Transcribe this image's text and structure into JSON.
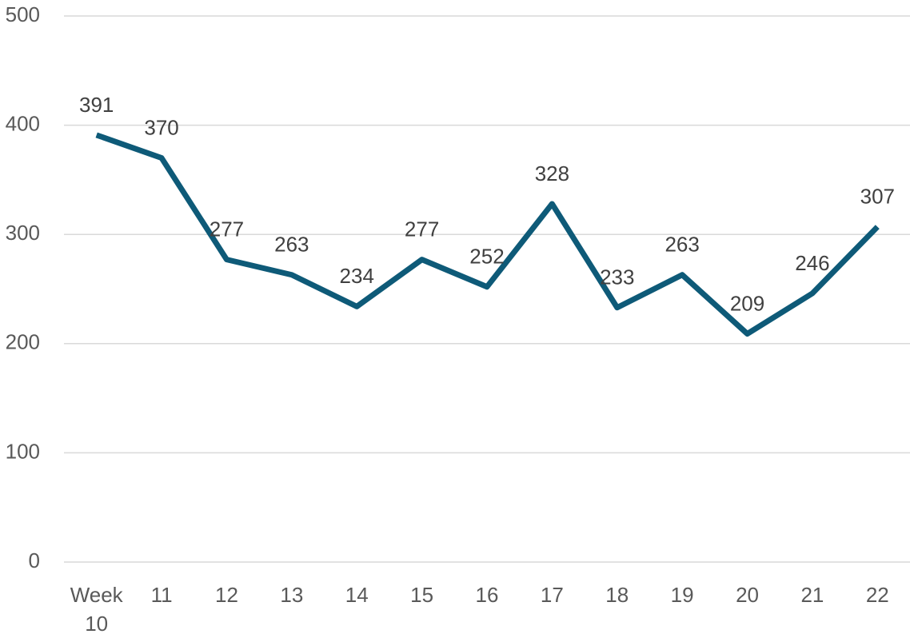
{
  "chart_data": {
    "type": "line",
    "categories": [
      "Week 10",
      "11",
      "12",
      "13",
      "14",
      "15",
      "16",
      "17",
      "18",
      "19",
      "20",
      "21",
      "22"
    ],
    "series": [
      {
        "name": null,
        "color": "#0e5a78",
        "values": [
          391,
          370,
          277,
          263,
          234,
          277,
          252,
          328,
          233,
          263,
          209,
          246,
          307
        ]
      }
    ],
    "ylim": [
      0,
      500
    ],
    "yticks": [
      0,
      100,
      200,
      300,
      400,
      500
    ],
    "grid": true,
    "data_labels": true
  }
}
